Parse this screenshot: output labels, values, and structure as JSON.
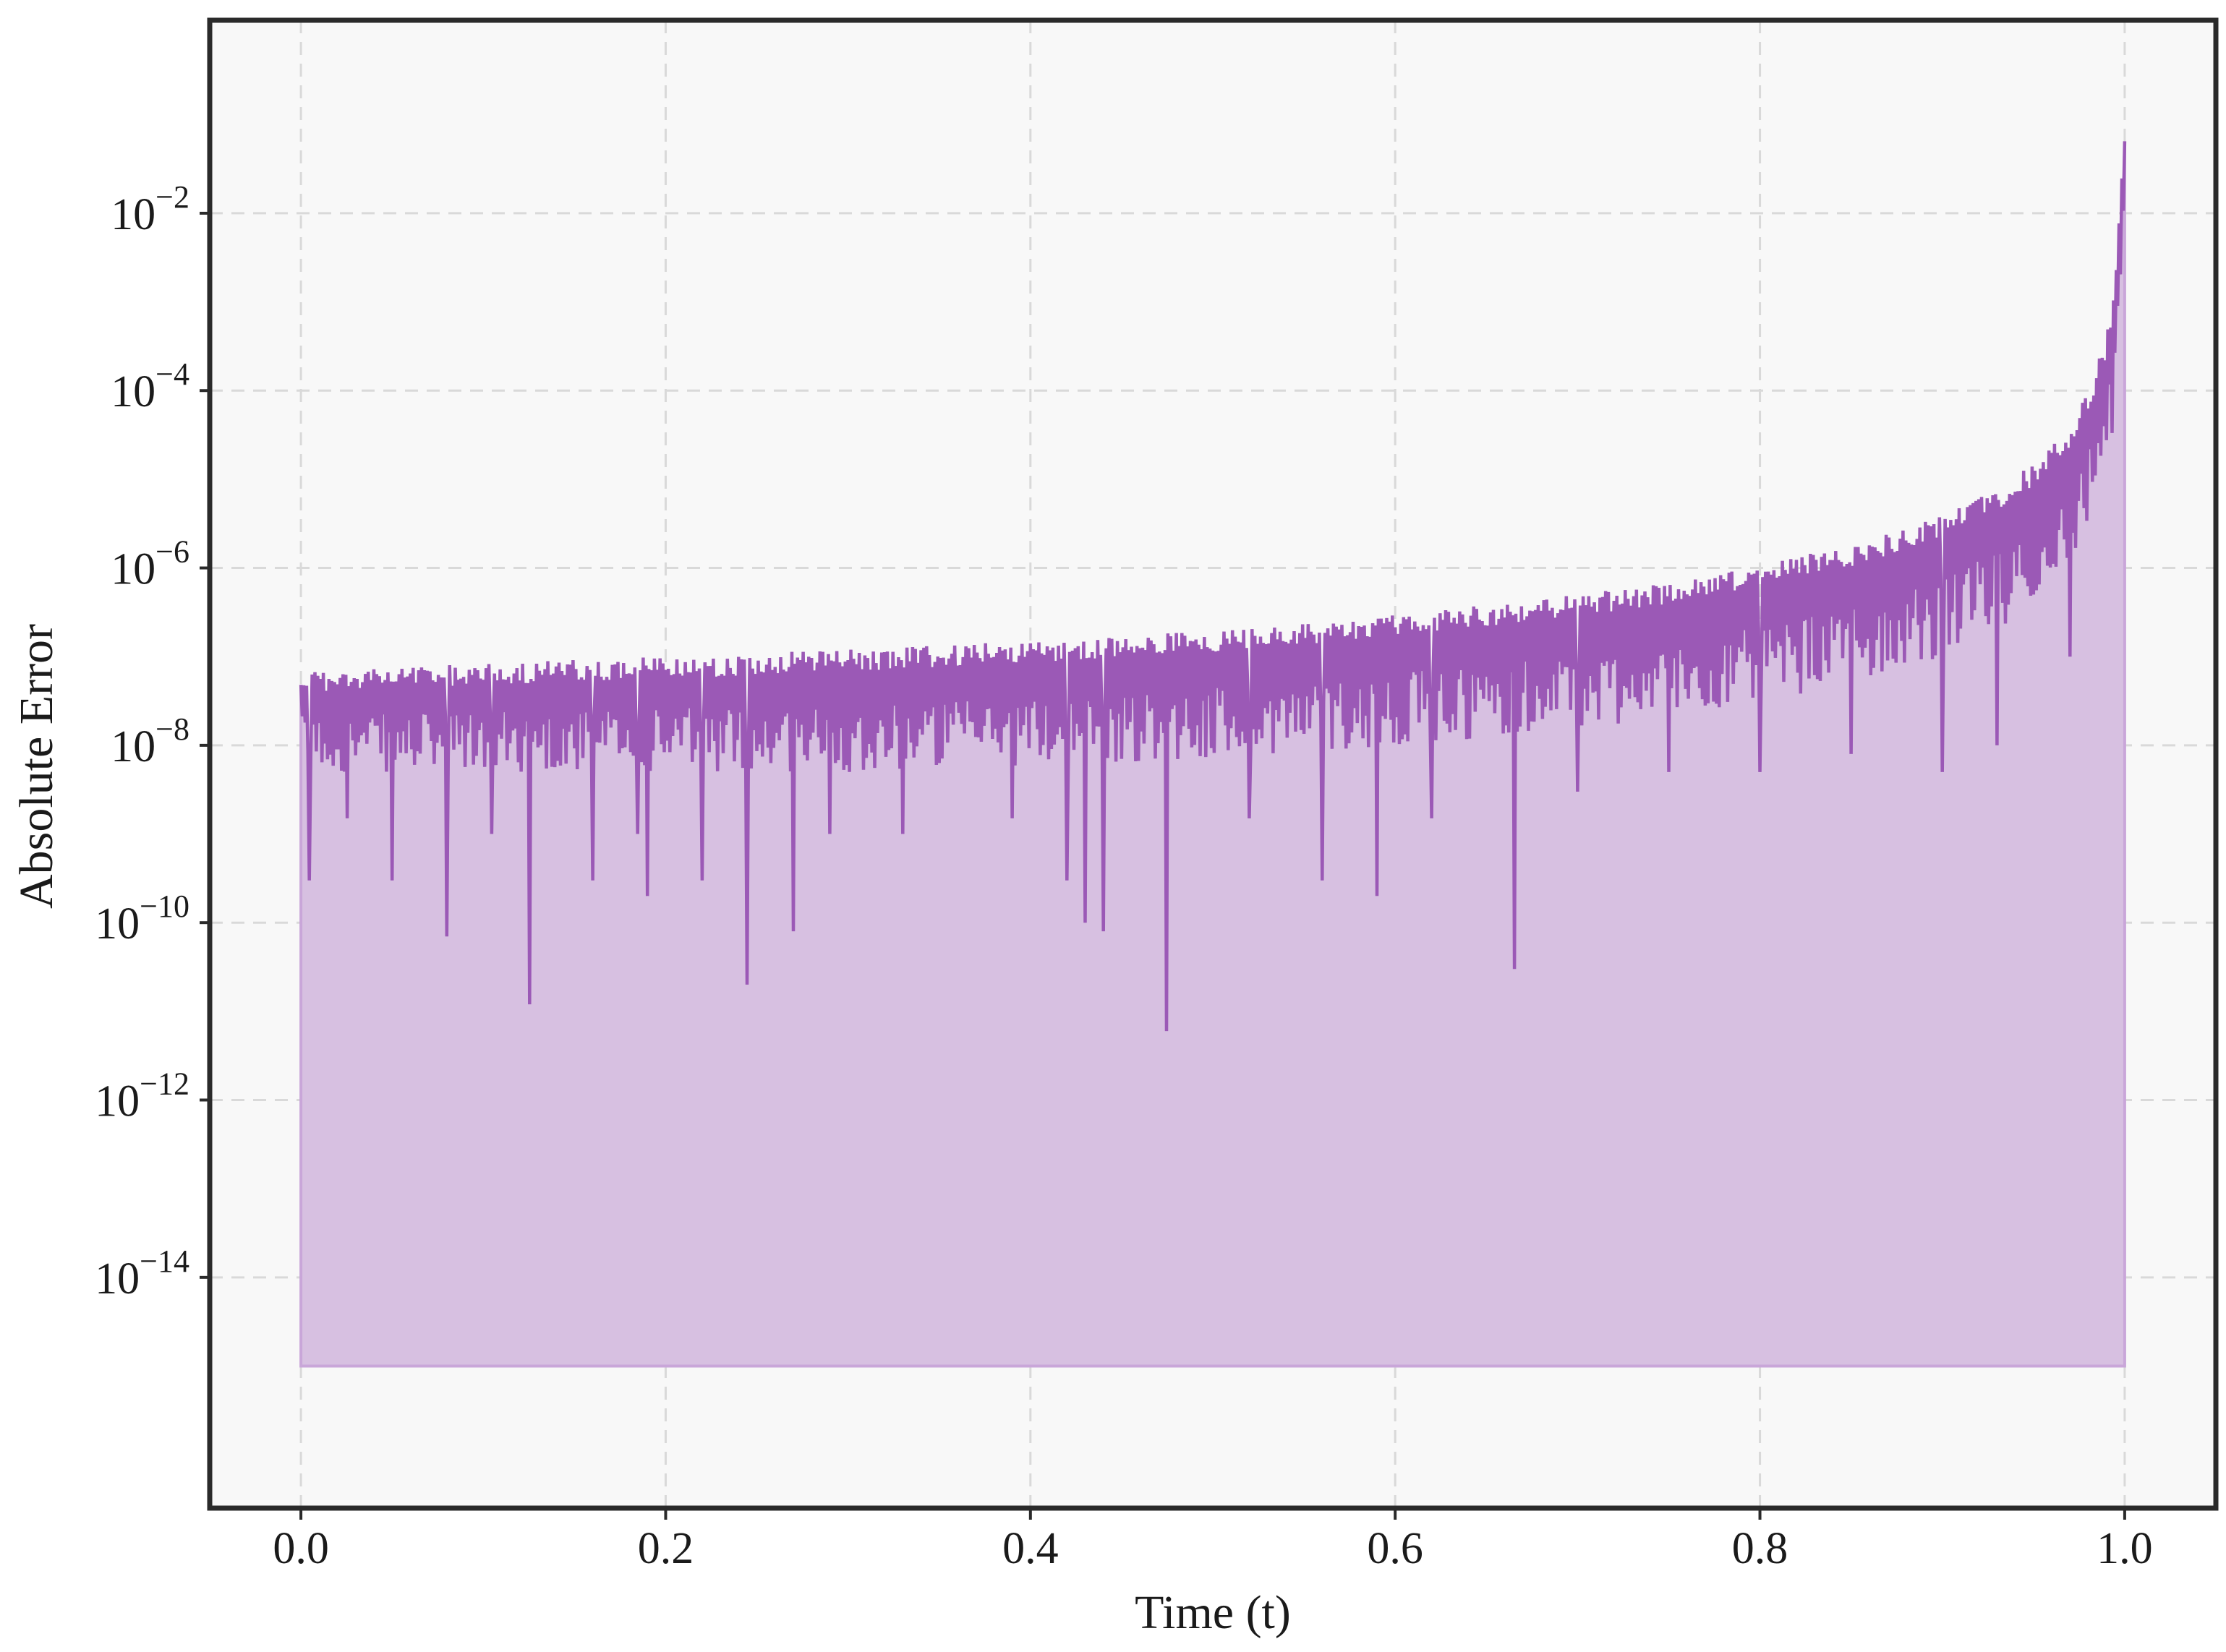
{
  "chart_data": {
    "type": "area",
    "title": "",
    "xlabel": "Time (t)",
    "ylabel": "Absolute Error",
    "x_scale": "linear",
    "y_scale": "log",
    "xlim": [
      -0.05,
      1.05
    ],
    "ylim": [
      2.5e-17,
      1.5
    ],
    "x_ticks": [
      0.0,
      0.2,
      0.4,
      0.6,
      0.8,
      1.0
    ],
    "x_tick_labels": [
      "0.0",
      "0.2",
      "0.4",
      "0.6",
      "0.8",
      "1.0"
    ],
    "y_ticks": [
      1e-14,
      1e-12,
      1e-10,
      1e-08,
      1e-06,
      0.0001,
      0.01
    ],
    "y_tick_labels": [
      {
        "base": "10",
        "exp": "−14"
      },
      {
        "base": "10",
        "exp": "−12"
      },
      {
        "base": "10",
        "exp": "−10"
      },
      {
        "base": "10",
        "exp": "−8"
      },
      {
        "base": "10",
        "exp": "−6"
      },
      {
        "base": "10",
        "exp": "−4"
      },
      {
        "base": "10",
        "exp": "−2"
      }
    ],
    "grid": true,
    "fill_baseline": 1e-15,
    "envelope": {
      "x": [
        0.0,
        0.1,
        0.2,
        0.3,
        0.4,
        0.5,
        0.6,
        0.7,
        0.75,
        0.8,
        0.85,
        0.9,
        0.93,
        0.95,
        0.97,
        0.98,
        0.99,
        0.995,
        1.0
      ],
      "upper": [
        7e-08,
        8.5e-08,
        1e-07,
        1.2e-07,
        1.5e-07,
        2e-07,
        3e-07,
        5e-07,
        7e-07,
        1.1e-06,
        1.8e-06,
        4e-06,
        8e-06,
        1.5e-05,
        4e-05,
        0.0001,
        0.0004,
        0.002,
        0.08
      ],
      "lower": [
        5e-09,
        5e-09,
        5e-09,
        5e-09,
        6e-09,
        7e-09,
        1e-08,
        1.5e-08,
        2e-08,
        3e-08,
        5e-08,
        1e-07,
        2e-07,
        4e-07,
        1e-06,
        3e-06,
        1e-05,
        5e-05,
        0.01
      ]
    },
    "dips": [
      {
        "x": 0.005,
        "y": 3e-10
      },
      {
        "x": 0.025,
        "y": 1.5e-09
      },
      {
        "x": 0.05,
        "y": 3e-10
      },
      {
        "x": 0.08,
        "y": 7e-11
      },
      {
        "x": 0.105,
        "y": 1e-09
      },
      {
        "x": 0.125,
        "y": 1.2e-11
      },
      {
        "x": 0.16,
        "y": 3e-10
      },
      {
        "x": 0.185,
        "y": 1e-09
      },
      {
        "x": 0.19,
        "y": 2e-10
      },
      {
        "x": 0.22,
        "y": 3e-10
      },
      {
        "x": 0.245,
        "y": 2e-11
      },
      {
        "x": 0.27,
        "y": 8e-11
      },
      {
        "x": 0.29,
        "y": 1e-09
      },
      {
        "x": 0.33,
        "y": 1e-09
      },
      {
        "x": 0.39,
        "y": 1.5e-09
      },
      {
        "x": 0.42,
        "y": 3e-10
      },
      {
        "x": 0.43,
        "y": 1e-10
      },
      {
        "x": 0.44,
        "y": 8e-11
      },
      {
        "x": 0.475,
        "y": 6e-12
      },
      {
        "x": 0.52,
        "y": 1.5e-09
      },
      {
        "x": 0.56,
        "y": 3e-10
      },
      {
        "x": 0.59,
        "y": 2e-10
      },
      {
        "x": 0.62,
        "y": 1.5e-09
      },
      {
        "x": 0.665,
        "y": 3e-11
      },
      {
        "x": 0.7,
        "y": 3e-09
      },
      {
        "x": 0.75,
        "y": 5e-09
      },
      {
        "x": 0.8,
        "y": 5e-09
      },
      {
        "x": 0.85,
        "y": 8e-09
      },
      {
        "x": 0.9,
        "y": 5e-09
      },
      {
        "x": 0.93,
        "y": 1e-08
      },
      {
        "x": 0.97,
        "y": 1e-07
      }
    ],
    "colors": {
      "line": "#9b59b6",
      "fill": "#d7c0e1",
      "fill_edge": "#c9a6d9",
      "plot_background": "#f8f8f8",
      "frame": "#2a2a2a",
      "grid": "#d9d9d9"
    }
  }
}
